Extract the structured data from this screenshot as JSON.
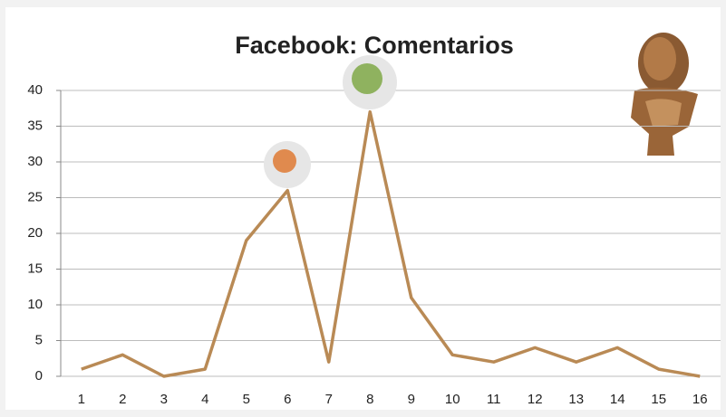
{
  "chart_data": {
    "type": "line",
    "title": "Facebook: Comentarios",
    "categories": [
      "1",
      "2",
      "3",
      "4",
      "5",
      "6",
      "7",
      "8",
      "9",
      "10",
      "11",
      "12",
      "13",
      "14",
      "15",
      "16"
    ],
    "values": [
      1,
      3,
      0,
      1,
      19,
      26,
      2,
      37,
      11,
      3,
      2,
      4,
      2,
      4,
      1,
      0
    ],
    "color": "#b98a55",
    "ylim": [
      0,
      40
    ],
    "yticks": [
      0,
      5,
      10,
      15,
      20,
      25,
      30,
      35,
      40
    ],
    "grid": true
  }
}
